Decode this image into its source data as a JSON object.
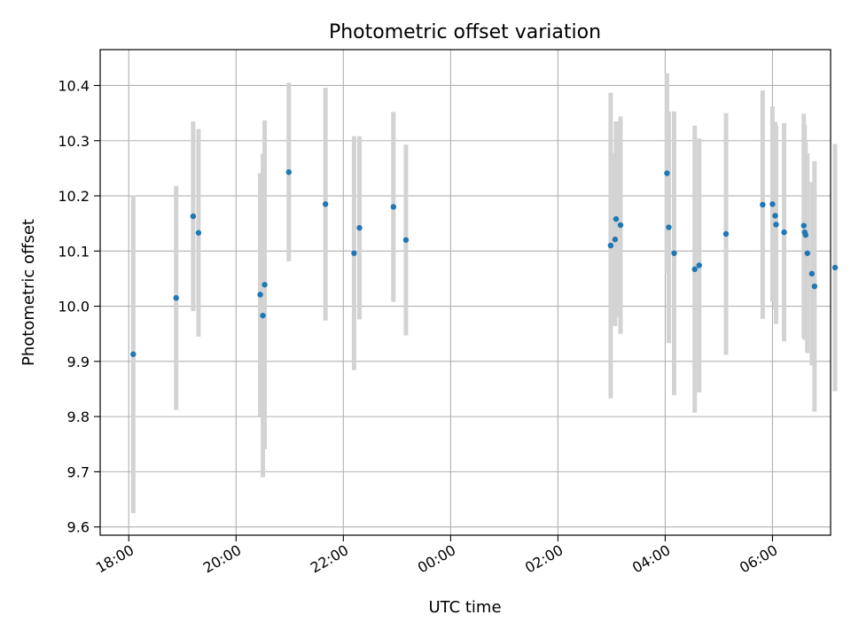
{
  "chart_data": {
    "type": "scatter",
    "title": "Photometric offset variation",
    "xlabel": "UTC time",
    "ylabel": "Photometric offset",
    "x_ticks": [
      "18:00",
      "20:00",
      "22:00",
      "00:00",
      "02:00",
      "04:00",
      "06:00"
    ],
    "y_ticks": [
      "9.6",
      "9.7",
      "9.8",
      "9.9",
      "10.0",
      "10.1",
      "10.2",
      "10.3",
      "10.4"
    ],
    "xlim": [
      "17:28",
      "07:05"
    ],
    "ylim": [
      9.585,
      10.465
    ],
    "grid": true,
    "colors": {
      "points": "#1f77b4",
      "errorbars": "#d3d3d3",
      "grid": "#b0b0b0"
    },
    "points": [
      {
        "x": "18:05",
        "y": 9.913,
        "err": 0.288
      },
      {
        "x": "18:53",
        "y": 10.015,
        "err": 0.203
      },
      {
        "x": "19:12",
        "y": 10.163,
        "err": 0.172
      },
      {
        "x": "19:18",
        "y": 10.133,
        "err": 0.188
      },
      {
        "x": "20:27",
        "y": 10.021,
        "err": 0.22
      },
      {
        "x": "20:30",
        "y": 9.983,
        "err": 0.293
      },
      {
        "x": "20:32",
        "y": 10.039,
        "err": 0.298
      },
      {
        "x": "20:59",
        "y": 10.243,
        "err": 0.162
      },
      {
        "x": "21:40",
        "y": 10.185,
        "err": 0.211
      },
      {
        "x": "22:12",
        "y": 10.096,
        "err": 0.212
      },
      {
        "x": "22:18",
        "y": 10.142,
        "err": 0.166
      },
      {
        "x": "22:56",
        "y": 10.18,
        "err": 0.172
      },
      {
        "x": "23:10",
        "y": 10.12,
        "err": 0.173
      },
      {
        "x": "02:59",
        "y": 10.11,
        "err": 0.277
      },
      {
        "x": "03:04",
        "y": 10.121,
        "err": 0.157
      },
      {
        "x": "03:05",
        "y": 10.158,
        "err": 0.177
      },
      {
        "x": "03:10",
        "y": 10.147,
        "err": 0.197
      },
      {
        "x": "04:02",
        "y": 10.241,
        "err": 0.181
      },
      {
        "x": "04:04",
        "y": 10.143,
        "err": 0.21
      },
      {
        "x": "04:10",
        "y": 10.096,
        "err": 0.257
      },
      {
        "x": "04:33",
        "y": 10.067,
        "err": 0.26
      },
      {
        "x": "04:38",
        "y": 10.074,
        "err": 0.23
      },
      {
        "x": "05:08",
        "y": 10.131,
        "err": 0.219
      },
      {
        "x": "05:49",
        "y": 10.184,
        "err": 0.207
      },
      {
        "x": "06:00",
        "y": 10.185,
        "err": 0.177
      },
      {
        "x": "06:03",
        "y": 10.164,
        "err": 0.17
      },
      {
        "x": "06:04",
        "y": 10.148,
        "err": 0.18
      },
      {
        "x": "06:13",
        "y": 10.134,
        "err": 0.198
      },
      {
        "x": "06:35",
        "y": 10.146,
        "err": 0.203
      },
      {
        "x": "06:36",
        "y": 10.134,
        "err": 0.195
      },
      {
        "x": "06:37",
        "y": 10.129,
        "err": 0.169
      },
      {
        "x": "06:39",
        "y": 10.096,
        "err": 0.181
      },
      {
        "x": "06:44",
        "y": 10.059,
        "err": 0.166
      },
      {
        "x": "06:47",
        "y": 10.036,
        "err": 0.227
      },
      {
        "x": "07:10",
        "y": 10.07,
        "err": 0.224
      }
    ]
  }
}
